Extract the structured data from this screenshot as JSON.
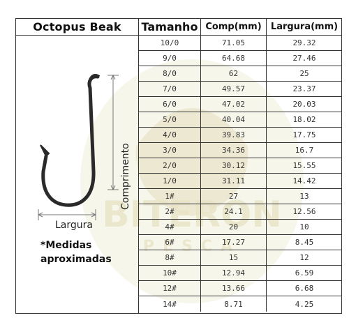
{
  "header": {
    "title": "Octopus Beak",
    "col_size": "Tamanho",
    "col_comp": "Comp(mm)",
    "col_larg": "Largura(mm)"
  },
  "diagram": {
    "label_length": "Comprimento",
    "label_width": "Largura"
  },
  "note": {
    "line1": "*Medidas",
    "line2": "aproximadas"
  },
  "watermark": {
    "brand": "BITERON",
    "sub": "PESCA"
  },
  "colors": {
    "border": "#333333",
    "hook": "#2a2a2a",
    "watermark": "#e8e2c4"
  },
  "rows": [
    {
      "size": "10/0",
      "comp": "71.05",
      "larg": "29.32"
    },
    {
      "size": "9/0",
      "comp": "64.68",
      "larg": "27.46"
    },
    {
      "size": "8/0",
      "comp": "62",
      "larg": "25"
    },
    {
      "size": "7/0",
      "comp": "49.57",
      "larg": "23.37"
    },
    {
      "size": "6/0",
      "comp": "47.02",
      "larg": "20.03"
    },
    {
      "size": "5/0",
      "comp": "40.04",
      "larg": "18.02"
    },
    {
      "size": "4/0",
      "comp": "39.83",
      "larg": "17.75"
    },
    {
      "size": "3/0",
      "comp": "34.36",
      "larg": "16.7"
    },
    {
      "size": "2/0",
      "comp": "30.12",
      "larg": "15.55"
    },
    {
      "size": "1/0",
      "comp": "31.11",
      "larg": "14.42"
    },
    {
      "size": "1#",
      "comp": "27",
      "larg": "13"
    },
    {
      "size": "2#",
      "comp": "24.1",
      "larg": "12.56"
    },
    {
      "size": "4#",
      "comp": "20",
      "larg": "10"
    },
    {
      "size": "6#",
      "comp": "17.27",
      "larg": "8.45"
    },
    {
      "size": "8#",
      "comp": "15",
      "larg": "12"
    },
    {
      "size": "10#",
      "comp": "12.94",
      "larg": "6.59"
    },
    {
      "size": "12#",
      "comp": "13.66",
      "larg": "6.68"
    },
    {
      "size": "14#",
      "comp": "8.71",
      "larg": "4.25"
    }
  ]
}
